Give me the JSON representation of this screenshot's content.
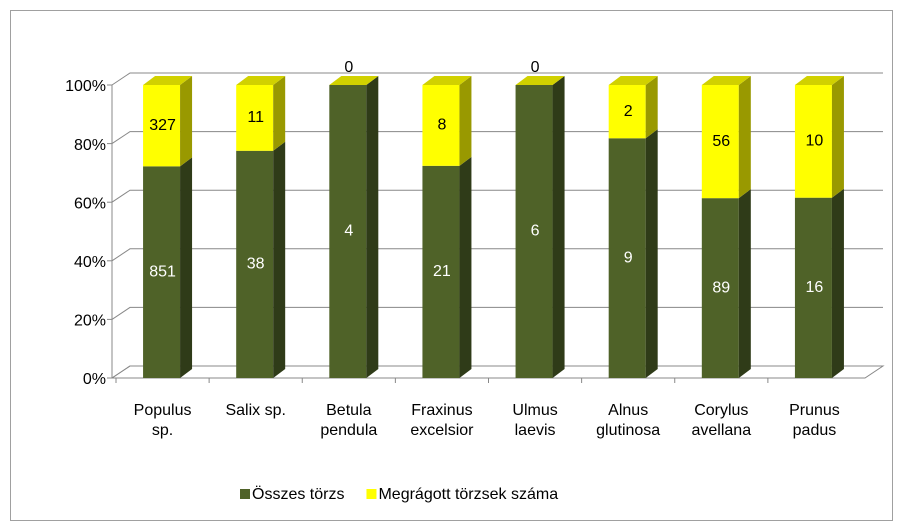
{
  "chart_data": {
    "type": "bar",
    "stacking": "percent",
    "categories": [
      [
        "Populus",
        "sp."
      ],
      [
        "Salix sp."
      ],
      [
        "Betula",
        "pendula"
      ],
      [
        "Fraxinus",
        "excelsior"
      ],
      [
        "Ulmus",
        "laevis"
      ],
      [
        "Alnus",
        "glutinosa"
      ],
      [
        "Corylus",
        "avellana"
      ],
      [
        "Prunus",
        "padus"
      ]
    ],
    "series": [
      {
        "name": "Összes törzs",
        "color": "#4f6228",
        "values": [
          851,
          38,
          4,
          21,
          6,
          9,
          89,
          16
        ]
      },
      {
        "name": "Megrágott törzsek száma",
        "color": "#ffff00",
        "values": [
          327,
          11,
          0,
          8,
          0,
          2,
          56,
          10
        ]
      }
    ],
    "ylim": [
      0,
      100
    ],
    "yticks": [
      {
        "value": 0,
        "label": "0%"
      },
      {
        "value": 20,
        "label": "20%"
      },
      {
        "value": 40,
        "label": "40%"
      },
      {
        "value": 60,
        "label": "60%"
      },
      {
        "value": 80,
        "label": "80%"
      },
      {
        "value": 100,
        "label": "100%"
      }
    ],
    "grid": true,
    "legend": "bottom"
  }
}
